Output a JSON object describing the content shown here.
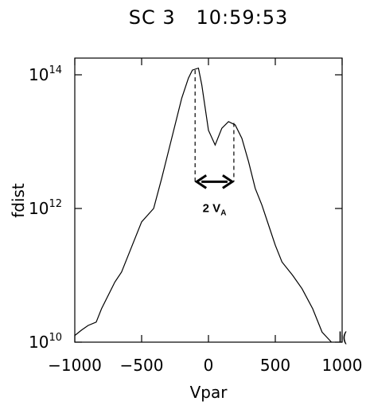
{
  "chart_data": {
    "type": "line",
    "title": "SC 3   10:59:53",
    "xlabel": "Vpar",
    "ylabel": "fdist",
    "xlim": [
      -1000,
      1000
    ],
    "ylim_log10": [
      10,
      14.25
    ],
    "y_scale": "log",
    "x_ticks": [
      -1000,
      -500,
      0,
      500,
      1000
    ],
    "x_tick_labels": [
      "−1000",
      "−500",
      "0",
      "500",
      "1000"
    ],
    "y_ticks": [
      {
        "base": "10",
        "exp": "10",
        "log10": 10
      },
      {
        "base": "10",
        "exp": "12",
        "log10": 12
      },
      {
        "base": "10",
        "exp": "14",
        "log10": 14
      }
    ],
    "grid": false,
    "series": [
      {
        "points": [
          [
            -1000,
            10.1
          ],
          [
            -950,
            10.18
          ],
          [
            -900,
            10.25
          ],
          [
            -840,
            10.3
          ],
          [
            -800,
            10.5
          ],
          [
            -700,
            10.9
          ],
          [
            -650,
            11.05
          ],
          [
            -600,
            11.3
          ],
          [
            -500,
            11.8
          ],
          [
            -410,
            12.0
          ],
          [
            -350,
            12.45
          ],
          [
            -300,
            12.85
          ],
          [
            -250,
            13.25
          ],
          [
            -200,
            13.65
          ],
          [
            -150,
            13.95
          ],
          [
            -120,
            14.07
          ],
          [
            -75,
            14.1
          ],
          [
            -50,
            13.85
          ],
          [
            0,
            13.17
          ],
          [
            50,
            12.95
          ],
          [
            100,
            13.2
          ],
          [
            150,
            13.3
          ],
          [
            200,
            13.25
          ],
          [
            250,
            13.05
          ],
          [
            300,
            12.7
          ],
          [
            350,
            12.3
          ],
          [
            400,
            12.05
          ],
          [
            450,
            11.75
          ],
          [
            500,
            11.45
          ],
          [
            550,
            11.2
          ],
          [
            630,
            11.0
          ],
          [
            700,
            10.8
          ],
          [
            780,
            10.5
          ],
          [
            850,
            10.15
          ],
          [
            920,
            10.0
          ]
        ]
      }
    ],
    "annotation": {
      "label_main": "2 V",
      "label_sub": "A",
      "peak_left_x": -100,
      "peak_left_log10": 14.07,
      "peak_right_x": 190,
      "peak_right_log10": 13.28,
      "arrow_log10": 12.4
    },
    "right_edge_char": "l("
  }
}
